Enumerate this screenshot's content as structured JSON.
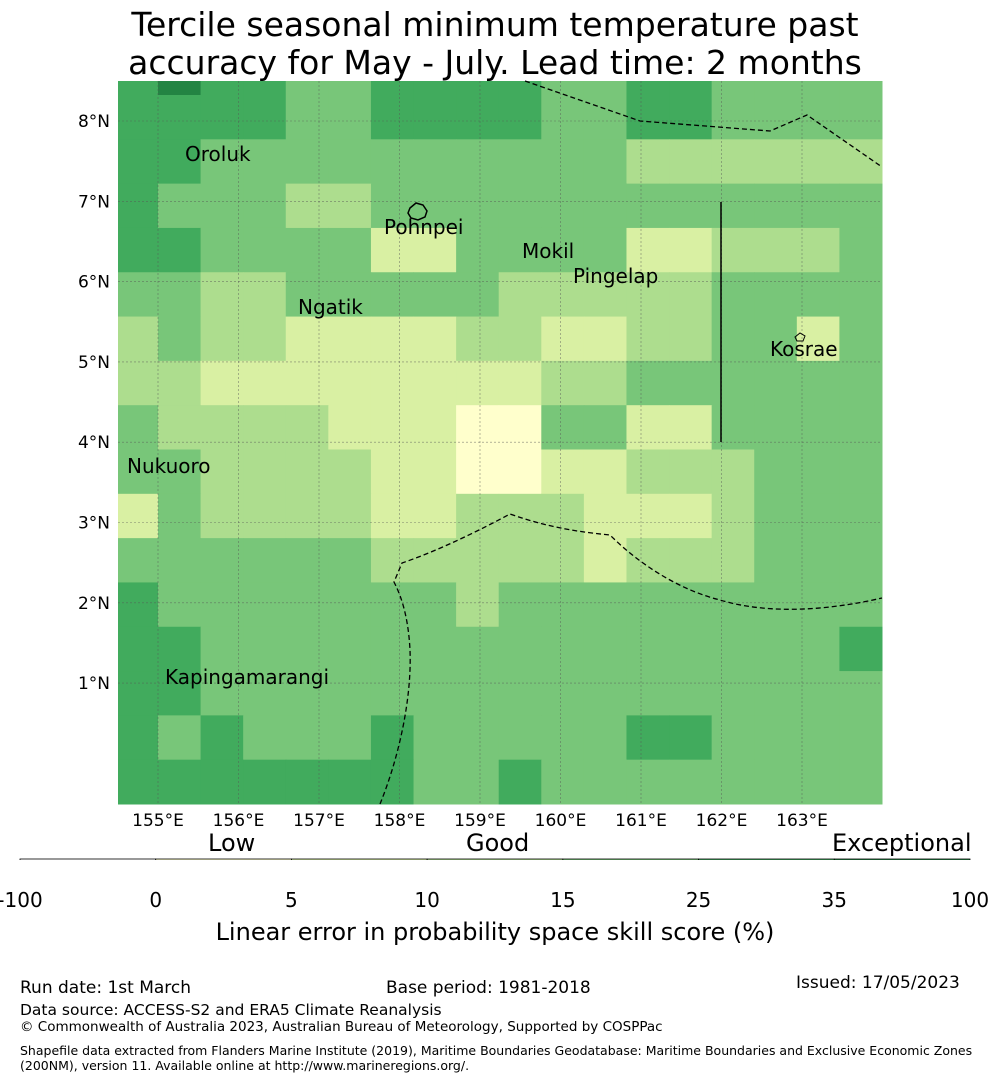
{
  "title_line1": "Tercile seasonal minimum temperature past",
  "title_line2": "accuracy for May - July. Lead time: 2 months",
  "lon_labels": [
    "155°E",
    "156°E",
    "157°E",
    "158°E",
    "159°E",
    "160°E",
    "161°E",
    "162°E",
    "163°E"
  ],
  "lat_labels": [
    "8°N",
    "7°N",
    "6°N",
    "5°N",
    "4°N",
    "3°N",
    "2°N",
    "1°N"
  ],
  "places": [
    {
      "name": "Oroluk"
    },
    {
      "name": "Pohnpei"
    },
    {
      "name": "Mokil"
    },
    {
      "name": "Pingelap"
    },
    {
      "name": "Ngatik"
    },
    {
      "name": "Kosrae"
    },
    {
      "name": "Nukuoro"
    },
    {
      "name": "Kapingamarangi"
    }
  ],
  "categories": {
    "low": "Low",
    "good": "Good",
    "exceptional": "Exceptional"
  },
  "colorbar": {
    "ticks": [
      "-100",
      "0",
      "5",
      "10",
      "15",
      "25",
      "35",
      "100"
    ],
    "colors": [
      "#ffffff",
      "#ffffcc",
      "#d9f0a3",
      "#addd8e",
      "#78c679",
      "#41ab5d",
      "#238443"
    ],
    "label": "Linear error in probability space skill score (%)"
  },
  "grid_values": [
    [
      25,
      35,
      25,
      25,
      15,
      15,
      25,
      25,
      25,
      25,
      15,
      15,
      25,
      25,
      15,
      15,
      15,
      15
    ],
    [
      25,
      25,
      25,
      25,
      15,
      15,
      25,
      25,
      25,
      25,
      15,
      15,
      25,
      25,
      15,
      15,
      15,
      15
    ],
    [
      25,
      25,
      15,
      15,
      15,
      15,
      15,
      15,
      15,
      15,
      15,
      15,
      10,
      10,
      10,
      10,
      10,
      10
    ],
    [
      25,
      15,
      15,
      15,
      10,
      10,
      15,
      15,
      15,
      15,
      15,
      15,
      15,
      15,
      15,
      15,
      15,
      15
    ],
    [
      25,
      25,
      15,
      15,
      15,
      15,
      5,
      5,
      15,
      15,
      15,
      15,
      5,
      5,
      10,
      10,
      10,
      15
    ],
    [
      15,
      15,
      10,
      10,
      15,
      15,
      15,
      15,
      15,
      10,
      10,
      10,
      10,
      10,
      15,
      15,
      15,
      15
    ],
    [
      10,
      15,
      10,
      10,
      5,
      5,
      5,
      5,
      10,
      10,
      5,
      5,
      10,
      10,
      15,
      15,
      5,
      15
    ],
    [
      10,
      10,
      5,
      5,
      5,
      5,
      5,
      5,
      5,
      5,
      10,
      10,
      15,
      15,
      15,
      15,
      15,
      15
    ],
    [
      15,
      10,
      10,
      10,
      10,
      5,
      5,
      5,
      0,
      0,
      15,
      15,
      5,
      5,
      15,
      15,
      15,
      15
    ],
    [
      15,
      15,
      10,
      10,
      10,
      10,
      5,
      5,
      0,
      0,
      5,
      5,
      10,
      10,
      10,
      15,
      15,
      15
    ],
    [
      5,
      15,
      10,
      10,
      10,
      10,
      5,
      5,
      10,
      10,
      10,
      5,
      5,
      5,
      10,
      15,
      15,
      15
    ],
    [
      15,
      15,
      15,
      15,
      15,
      15,
      10,
      10,
      10,
      10,
      10,
      5,
      10,
      10,
      10,
      15,
      15,
      15
    ],
    [
      25,
      15,
      15,
      15,
      15,
      15,
      15,
      15,
      10,
      15,
      15,
      15,
      15,
      15,
      15,
      15,
      15,
      15
    ],
    [
      25,
      25,
      15,
      15,
      15,
      15,
      15,
      15,
      15,
      15,
      15,
      15,
      15,
      15,
      15,
      15,
      15,
      25
    ],
    [
      25,
      25,
      15,
      15,
      15,
      15,
      15,
      15,
      15,
      15,
      15,
      15,
      15,
      15,
      15,
      15,
      15,
      15
    ],
    [
      25,
      15,
      25,
      15,
      15,
      15,
      25,
      15,
      15,
      15,
      15,
      15,
      25,
      25,
      15,
      15,
      15,
      15
    ],
    [
      25,
      25,
      25,
      25,
      25,
      25,
      25,
      15,
      15,
      25,
      15,
      15,
      15,
      15,
      15,
      15,
      15,
      15
    ]
  ],
  "footer": {
    "run_date": "Run date: 1st March",
    "base_period": "Base period: 1981-2018",
    "issued": "Issued: 17/05/2023",
    "data_source": "Data source: ACCESS-S2 and ERA5 Climate Reanalysis",
    "copyright": "© Commonwealth of Australia 2023, Australian Bureau of Meteorology, Supported by COSPPac",
    "shapefile_line1": "Shapefile data extracted from Flanders Marine Institute (2019), Maritime Boundaries Geodatabase: Maritime Boundaries and Exclusive Economic Zones",
    "shapefile_line2": "(200NM), version 11. Available online at http://www.marineregions.org/."
  }
}
